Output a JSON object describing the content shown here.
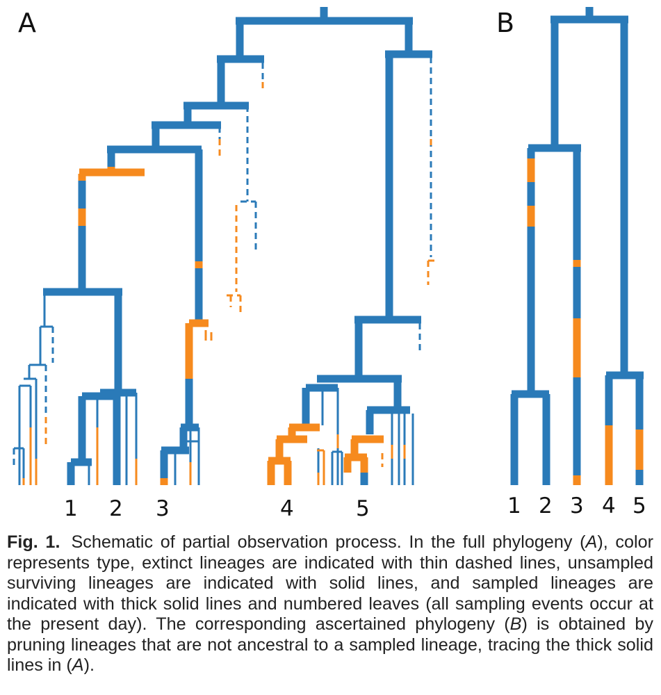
{
  "panels": {
    "a_label": "A",
    "b_label": "B"
  },
  "leaves_a": [
    "1",
    "2",
    "3",
    "4",
    "5"
  ],
  "leaves_b": [
    "1",
    "2",
    "3",
    "4",
    "5"
  ],
  "colors": {
    "blue": "#2a7ab8",
    "orange": "#f68a1e"
  },
  "legend_semantics": {
    "extinct": "thin dashed lines",
    "unsampled_surviving": "solid lines",
    "sampled": "thick solid lines"
  },
  "caption": {
    "fig_number": "Fig. 1.",
    "s1": "Schematic of partial observation process. In the full phylogeny (",
    "ref_a1": "A",
    "s2": "), color represents type, extinct lineages are indicated with thin dashed lines, unsampled surviving lineages are indicated with solid lines, and sampled lineages are indicated with thick solid lines and numbered leaves (all sampling events occur at the present day). The corresponding ascertained phylogeny (",
    "ref_b": "B",
    "s3": ") is obtained by pruning lineages that are not ancestral to a sampled lineage, tracing the thick solid lines in (",
    "ref_a2": "A",
    "s4": ")."
  }
}
